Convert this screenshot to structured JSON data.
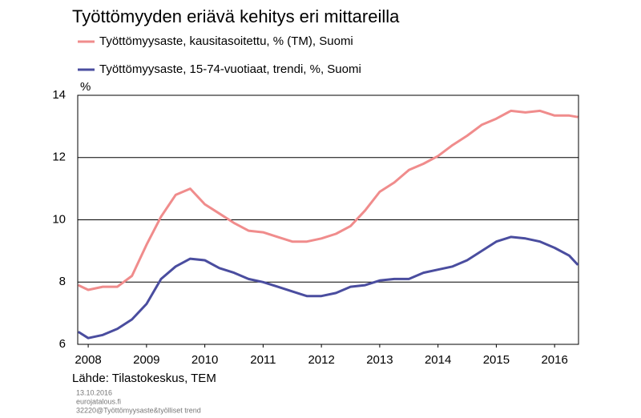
{
  "chart_data": {
    "type": "line",
    "title": "Työttömyyden eriävä kehitys eri mittareilla",
    "y_label": "%",
    "source": "Lähde: Tilastokeskus, TEM",
    "footer": [
      "13.10.2016",
      "eurojatalous.fi",
      "32220@Työttömyysaste&työlliset trend"
    ],
    "x": [
      2007.83,
      2008.0,
      2008.25,
      2008.5,
      2008.75,
      2009.0,
      2009.25,
      2009.5,
      2009.75,
      2010.0,
      2010.25,
      2010.5,
      2010.75,
      2011.0,
      2011.25,
      2011.5,
      2011.75,
      2012.0,
      2012.25,
      2012.5,
      2012.75,
      2013.0,
      2013.25,
      2013.5,
      2013.75,
      2014.0,
      2014.25,
      2014.5,
      2014.75,
      2015.0,
      2015.25,
      2015.5,
      2015.75,
      2016.0,
      2016.25,
      2016.4
    ],
    "series": [
      {
        "name": "Työttömyysaste, kausitasoitettu, % (TM), Suomi",
        "color": "#f08c8c",
        "values": [
          7.9,
          7.75,
          7.85,
          7.85,
          8.2,
          9.2,
          10.1,
          10.8,
          11.0,
          10.5,
          10.2,
          9.9,
          9.65,
          9.6,
          9.45,
          9.3,
          9.3,
          9.4,
          9.55,
          9.8,
          10.3,
          10.9,
          11.2,
          11.6,
          11.8,
          12.05,
          12.4,
          12.7,
          13.05,
          13.25,
          13.5,
          13.45,
          13.5,
          13.35,
          13.35,
          13.3
        ]
      },
      {
        "name": "Työttömyysaste, 15-74-vuotiaat, trendi, %, Suomi",
        "color": "#4a4d9f",
        "values": [
          6.4,
          6.2,
          6.3,
          6.5,
          6.8,
          7.3,
          8.1,
          8.5,
          8.75,
          8.7,
          8.45,
          8.3,
          8.1,
          8.0,
          7.85,
          7.7,
          7.55,
          7.55,
          7.65,
          7.85,
          7.9,
          8.05,
          8.1,
          8.1,
          8.3,
          8.4,
          8.5,
          8.7,
          9.0,
          9.3,
          9.45,
          9.4,
          9.3,
          9.1,
          8.85,
          8.55
        ]
      }
    ],
    "xlim": [
      2007.82,
      2016.41
    ],
    "xticks": [
      2008,
      2009,
      2010,
      2011,
      2012,
      2013,
      2014,
      2015,
      2016
    ],
    "ylim": [
      6,
      14
    ],
    "yticks": [
      6,
      8,
      10,
      12,
      14
    ],
    "grid": true
  }
}
